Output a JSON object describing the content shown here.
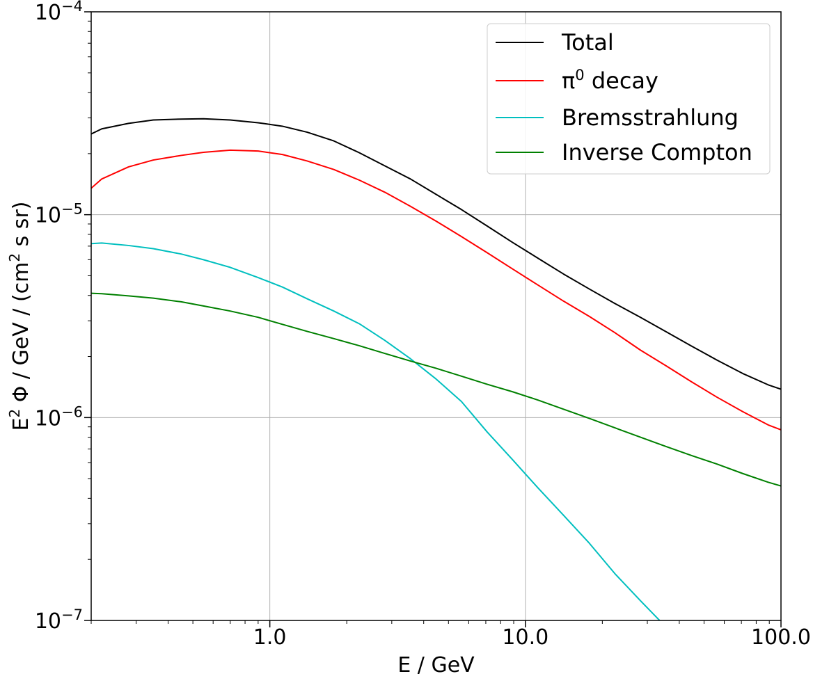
{
  "chart_data": {
    "type": "line",
    "xscale": "log",
    "yscale": "log",
    "xlim": [
      0.2,
      100.0
    ],
    "ylim": [
      1e-07,
      0.0001
    ],
    "xlabel": "E / GeV",
    "ylabel": {
      "prefix": "E",
      "prefix_sup": "2",
      "mid": " Φ / GeV / (cm",
      "mid_sup": "2",
      "suffix": " s sr)"
    },
    "x_ticks": [
      {
        "value": 1.0,
        "label": "1.0"
      },
      {
        "value": 10.0,
        "label": "10.0"
      },
      {
        "value": 100.0,
        "label": "100.0"
      }
    ],
    "y_ticks": [
      {
        "value": 1e-07,
        "base": "10",
        "exp": "−7"
      },
      {
        "value": 1e-06,
        "base": "10",
        "exp": "−6"
      },
      {
        "value": 1e-05,
        "base": "10",
        "exp": "−5"
      },
      {
        "value": 0.0001,
        "base": "10",
        "exp": "−4"
      }
    ],
    "grid": true,
    "legend": {
      "position": "top-right"
    },
    "series": [
      {
        "name": "Total",
        "color": "#000000",
        "points": [
          [
            0.2,
            2.5e-05
          ],
          [
            0.22,
            2.65e-05
          ],
          [
            0.28,
            2.82e-05
          ],
          [
            0.35,
            2.93e-05
          ],
          [
            0.45,
            2.96e-05
          ],
          [
            0.55,
            2.97e-05
          ],
          [
            0.7,
            2.93e-05
          ],
          [
            0.9,
            2.84e-05
          ],
          [
            1.12,
            2.73e-05
          ],
          [
            1.4,
            2.55e-05
          ],
          [
            1.78,
            2.31e-05
          ],
          [
            2.24,
            2.02e-05
          ],
          [
            2.82,
            1.74e-05
          ],
          [
            3.55,
            1.5e-05
          ],
          [
            4.47,
            1.26e-05
          ],
          [
            5.62,
            1.06e-05
          ],
          [
            7.08,
            8.8e-06
          ],
          [
            8.91,
            7.3e-06
          ],
          [
            11.2,
            6.1e-06
          ],
          [
            14.1,
            5.1e-06
          ],
          [
            17.8,
            4.3e-06
          ],
          [
            22.4,
            3.65e-06
          ],
          [
            28.2,
            3.12e-06
          ],
          [
            35.5,
            2.65e-06
          ],
          [
            44.7,
            2.25e-06
          ],
          [
            56.2,
            1.92e-06
          ],
          [
            70.8,
            1.65e-06
          ],
          [
            89.1,
            1.45e-06
          ],
          [
            100.0,
            1.38e-06
          ]
        ]
      },
      {
        "name": "π⁰ decay",
        "label_base": "π",
        "label_sup": "0",
        "label_rest": " decay",
        "color": "#ff0000",
        "points": [
          [
            0.2,
            1.35e-05
          ],
          [
            0.22,
            1.5e-05
          ],
          [
            0.28,
            1.72e-05
          ],
          [
            0.35,
            1.86e-05
          ],
          [
            0.45,
            1.96e-05
          ],
          [
            0.55,
            2.03e-05
          ],
          [
            0.7,
            2.08e-05
          ],
          [
            0.9,
            2.06e-05
          ],
          [
            1.12,
            1.98e-05
          ],
          [
            1.4,
            1.84e-05
          ],
          [
            1.78,
            1.67e-05
          ],
          [
            2.24,
            1.48e-05
          ],
          [
            2.82,
            1.29e-05
          ],
          [
            3.55,
            1.1e-05
          ],
          [
            4.47,
            9.3e-06
          ],
          [
            5.62,
            7.8e-06
          ],
          [
            7.08,
            6.5e-06
          ],
          [
            8.91,
            5.4e-06
          ],
          [
            11.2,
            4.5e-06
          ],
          [
            14.1,
            3.75e-06
          ],
          [
            17.8,
            3.15e-06
          ],
          [
            22.4,
            2.62e-06
          ],
          [
            28.2,
            2.15e-06
          ],
          [
            35.5,
            1.8e-06
          ],
          [
            44.7,
            1.5e-06
          ],
          [
            56.2,
            1.26e-06
          ],
          [
            70.8,
            1.07e-06
          ],
          [
            89.1,
            9.2e-07
          ],
          [
            100.0,
            8.7e-07
          ]
        ]
      },
      {
        "name": "Bremsstrahlung",
        "color": "#00bfbf",
        "points": [
          [
            0.2,
            7.2e-06
          ],
          [
            0.22,
            7.25e-06
          ],
          [
            0.28,
            7.05e-06
          ],
          [
            0.35,
            6.8e-06
          ],
          [
            0.45,
            6.4e-06
          ],
          [
            0.55,
            6e-06
          ],
          [
            0.7,
            5.5e-06
          ],
          [
            0.9,
            4.9e-06
          ],
          [
            1.12,
            4.4e-06
          ],
          [
            1.4,
            3.85e-06
          ],
          [
            1.78,
            3.35e-06
          ],
          [
            2.24,
            2.9e-06
          ],
          [
            2.82,
            2.4e-06
          ],
          [
            3.55,
            1.95e-06
          ],
          [
            4.47,
            1.55e-06
          ],
          [
            5.62,
            1.2e-06
          ],
          [
            7.08,
            8.5e-07
          ],
          [
            8.91,
            6.2e-07
          ],
          [
            11.2,
            4.5e-07
          ],
          [
            14.1,
            3.3e-07
          ],
          [
            17.8,
            2.4e-07
          ],
          [
            22.4,
            1.7e-07
          ],
          [
            28.2,
            1.25e-07
          ],
          [
            33.5,
            1e-07
          ]
        ]
      },
      {
        "name": "Inverse Compton",
        "color": "#008000",
        "points": [
          [
            0.2,
            4.1e-06
          ],
          [
            0.22,
            4.08e-06
          ],
          [
            0.28,
            3.98e-06
          ],
          [
            0.35,
            3.88e-06
          ],
          [
            0.45,
            3.72e-06
          ],
          [
            0.55,
            3.55e-06
          ],
          [
            0.7,
            3.35e-06
          ],
          [
            0.9,
            3.12e-06
          ],
          [
            1.12,
            2.88e-06
          ],
          [
            1.4,
            2.66e-06
          ],
          [
            1.78,
            2.45e-06
          ],
          [
            2.24,
            2.26e-06
          ],
          [
            2.82,
            2.07e-06
          ],
          [
            3.55,
            1.9e-06
          ],
          [
            4.47,
            1.75e-06
          ],
          [
            5.62,
            1.6e-06
          ],
          [
            7.08,
            1.46e-06
          ],
          [
            8.91,
            1.34e-06
          ],
          [
            11.2,
            1.22e-06
          ],
          [
            14.1,
            1.1e-06
          ],
          [
            17.8,
            9.9e-07
          ],
          [
            22.4,
            8.9e-07
          ],
          [
            28.2,
            8e-07
          ],
          [
            35.5,
            7.2e-07
          ],
          [
            44.7,
            6.5e-07
          ],
          [
            56.2,
            5.9e-07
          ],
          [
            70.8,
            5.3e-07
          ],
          [
            89.1,
            4.8e-07
          ],
          [
            100.0,
            4.6e-07
          ]
        ]
      }
    ]
  }
}
